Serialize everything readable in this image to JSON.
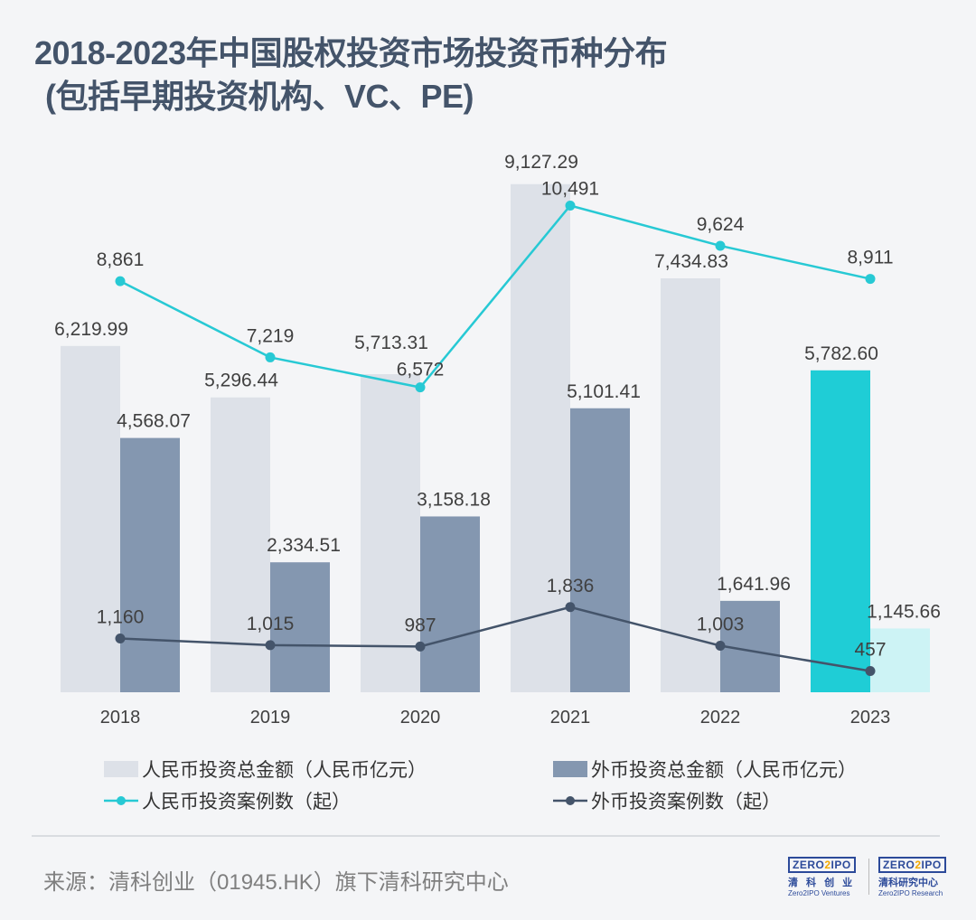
{
  "title_line1": "2018-2023年中国股权投资市场投资币种分布",
  "title_line2": "(包括早期投资机构、VC、PE)",
  "source": "来源：清科创业（01945.HK）旗下清科研究中心",
  "logos": {
    "left": {
      "mark": "ZERO2IPO",
      "cn": "清 科 创 业",
      "en": "Zero2IPO Ventures"
    },
    "right": {
      "mark": "ZERO2IPO",
      "cn": "清科研究中心",
      "en": "Zero2IPO Research"
    }
  },
  "colors": {
    "rmb_amount": "#dde1e8",
    "foreign_amount": "#8497b0",
    "rmb_amount_2023": "#1fcdd6",
    "foreign_amount_2023": "#cdf3f5",
    "rmb_count": "#27c9d4",
    "foreign_count": "#44546a"
  },
  "chart_data": {
    "type": "bar+line",
    "categories": [
      "2018",
      "2019",
      "2020",
      "2021",
      "2022",
      "2023"
    ],
    "bar_axis": {
      "ylim": [
        0,
        10000
      ]
    },
    "line_axis": {
      "ylim": [
        0,
        12000
      ]
    },
    "grid": false,
    "legend_position": "bottom",
    "series": [
      {
        "name": "人民币投资总金额（人民币亿元）",
        "type": "bar",
        "values": [
          6219.99,
          5296.44,
          5713.31,
          9127.29,
          7434.83,
          5782.6
        ],
        "labels": [
          "6,219.99",
          "5,296.44",
          "5,713.31",
          "9,127.29",
          "7,434.83",
          "5,782.60"
        ]
      },
      {
        "name": "外币投资总金额（人民币亿元）",
        "type": "bar",
        "values": [
          4568.07,
          2334.51,
          3158.18,
          5101.41,
          1641.96,
          1145.66
        ],
        "labels": [
          "4,568.07",
          "2,334.51",
          "3,158.18",
          "5,101.41",
          "1,641.96",
          "1,145.66"
        ]
      },
      {
        "name": "人民币投资案例数（起）",
        "type": "line",
        "values": [
          8861,
          7219,
          6572,
          10491,
          9624,
          8911
        ],
        "labels": [
          "8,861",
          "7,219",
          "6,572",
          "10,491",
          "9,624",
          "8,911"
        ]
      },
      {
        "name": "外币投资案例数（起）",
        "type": "line",
        "values": [
          1160,
          1015,
          987,
          1836,
          1003,
          457
        ],
        "labels": [
          "1,160",
          "1,015",
          "987",
          "1,836",
          "1,003",
          "457"
        ]
      }
    ]
  }
}
